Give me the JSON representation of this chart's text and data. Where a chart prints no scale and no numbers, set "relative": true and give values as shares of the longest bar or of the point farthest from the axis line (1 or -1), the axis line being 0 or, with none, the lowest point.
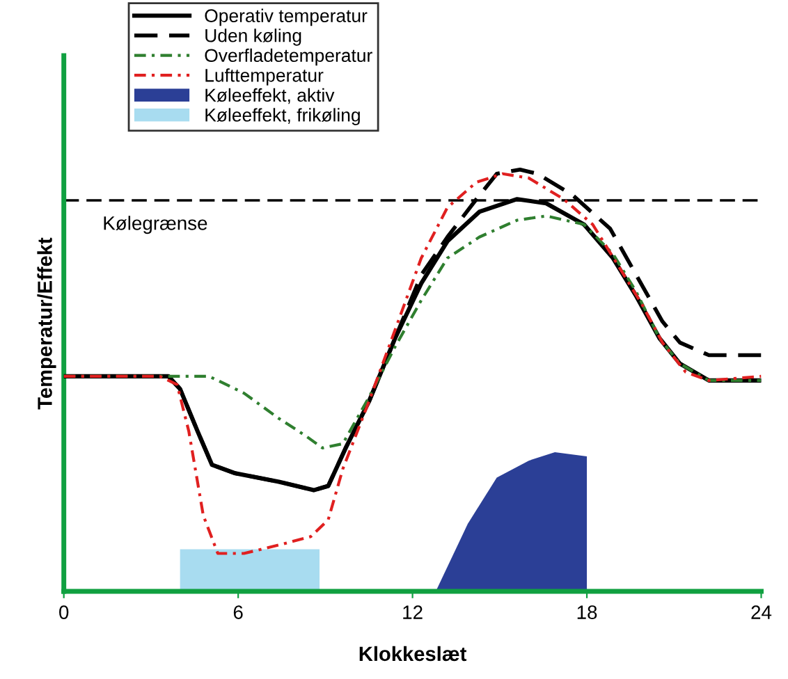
{
  "chart_data": {
    "type": "line",
    "xlabel": "Klokkeslæt",
    "ylabel": "Temperatur/Effekt",
    "relative": true,
    "xlim": [
      0,
      24
    ],
    "xticks": [
      0,
      6,
      12,
      18,
      24
    ],
    "tick_labels": "x",
    "grid": false,
    "legend": "top left",
    "ref_lines": [
      {
        "axis": "y",
        "value": 0.927,
        "label": "Kølegrænse",
        "color": "#000000",
        "line_style": "dashed"
      }
    ],
    "series": [
      {
        "name": "Operativ temperatur",
        "color": "#000000",
        "line_style": "solid",
        "x": [
          0,
          3.6,
          4.0,
          4.6,
          5.1,
          5.9,
          7.4,
          8.6,
          9.1,
          9.7,
          10.5,
          11.4,
          12.3,
          13.2,
          14.3,
          15.6,
          16.6,
          17.9,
          18.9,
          19.7,
          20.5,
          21.2,
          22.2,
          24
        ],
        "values": [
          0.51,
          0.51,
          0.48,
          0.38,
          0.3,
          0.28,
          0.26,
          0.24,
          0.25,
          0.34,
          0.45,
          0.6,
          0.73,
          0.83,
          0.9,
          0.93,
          0.92,
          0.87,
          0.79,
          0.7,
          0.6,
          0.54,
          0.5,
          0.5
        ]
      },
      {
        "name": "Uden køling",
        "color": "#000000",
        "line_style": "dashed",
        "x": [
          0,
          3.6,
          4.0,
          4.6,
          5.1,
          5.9,
          7.4,
          8.6,
          9.1,
          9.7,
          10.5,
          12.3,
          13.2,
          14.2,
          14.9,
          15.7,
          16.3,
          17.5,
          18.8,
          19.7,
          20.6,
          21.2,
          22.2,
          24
        ],
        "values": [
          0.51,
          0.51,
          0.48,
          0.38,
          0.3,
          0.28,
          0.26,
          0.24,
          0.25,
          0.34,
          0.45,
          0.75,
          0.84,
          0.93,
          0.99,
          1.0,
          0.99,
          0.94,
          0.86,
          0.75,
          0.64,
          0.59,
          0.56,
          0.56
        ]
      },
      {
        "name": "Overfladetemperatur",
        "color": "#2f7f2f",
        "line_style": "dashdot",
        "x": [
          0,
          3.6,
          5.0,
          6.2,
          7.4,
          8.3,
          8.9,
          9.6,
          10.5,
          11.4,
          12.3,
          13.2,
          14.3,
          15.6,
          16.6,
          17.9,
          18.9,
          19.7,
          20.5,
          21.2,
          22.2,
          24
        ],
        "values": [
          0.51,
          0.51,
          0.51,
          0.47,
          0.41,
          0.37,
          0.34,
          0.35,
          0.46,
          0.58,
          0.69,
          0.79,
          0.84,
          0.88,
          0.89,
          0.87,
          0.8,
          0.71,
          0.6,
          0.54,
          0.5,
          0.5
        ]
      },
      {
        "name": "Lufttemperatur",
        "color": "#e02020",
        "line_style": "dashdot",
        "x": [
          0,
          3.3,
          3.9,
          4.3,
          4.8,
          5.3,
          6.2,
          7.4,
          8.5,
          9.1,
          9.6,
          10.5,
          11.4,
          12.3,
          13.2,
          14.2,
          15.1,
          16.0,
          17.2,
          18.2,
          19.1,
          19.9,
          20.6,
          21.4,
          22.2,
          24
        ],
        "values": [
          0.51,
          0.51,
          0.49,
          0.38,
          0.18,
          0.09,
          0.09,
          0.11,
          0.13,
          0.17,
          0.29,
          0.45,
          0.62,
          0.79,
          0.91,
          0.97,
          0.99,
          0.98,
          0.93,
          0.87,
          0.77,
          0.68,
          0.59,
          0.52,
          0.5,
          0.51
        ]
      },
      {
        "name": "Køleeffekt, aktiv",
        "type": "area",
        "color": "#2b3f96",
        "x": [
          12.8,
          13.9,
          14.9,
          16.0,
          16.9,
          18.0
        ],
        "values": [
          0,
          0.16,
          0.27,
          0.31,
          0.33,
          0.32
        ]
      },
      {
        "name": "Køleeffekt, frikøling",
        "type": "area",
        "color": "#a8dcf0",
        "x": [
          4.0,
          8.8
        ],
        "values": [
          0.1,
          0.1
        ]
      }
    ]
  }
}
